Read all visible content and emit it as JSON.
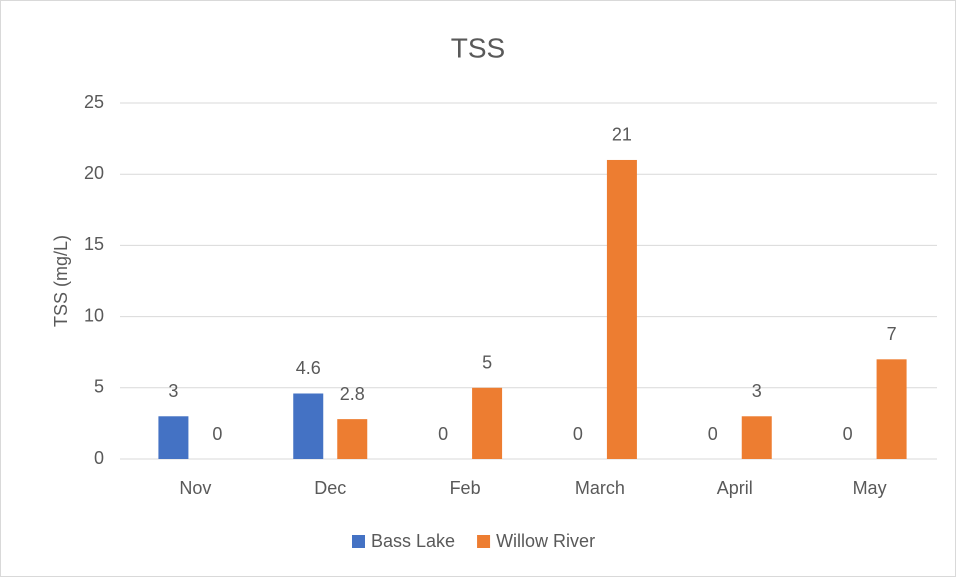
{
  "chart_data": {
    "type": "bar",
    "title": "TSS",
    "y_label": "TSS (mg/L)",
    "categories": [
      "Nov",
      "Dec",
      "Feb",
      "March",
      "April",
      "May"
    ],
    "series": [
      {
        "name": "Bass Lake",
        "color": "#4472c4",
        "values": [
          3,
          4.6,
          0,
          0,
          0,
          0
        ]
      },
      {
        "name": "Willow River",
        "color": "#ed7d31",
        "values": [
          0,
          2.8,
          5,
          21,
          3,
          7
        ]
      }
    ],
    "ylim": [
      0,
      25
    ],
    "yticks": [
      0,
      5,
      10,
      15,
      20,
      25
    ],
    "grid": true,
    "legend": "bottom",
    "data_labels": true
  }
}
